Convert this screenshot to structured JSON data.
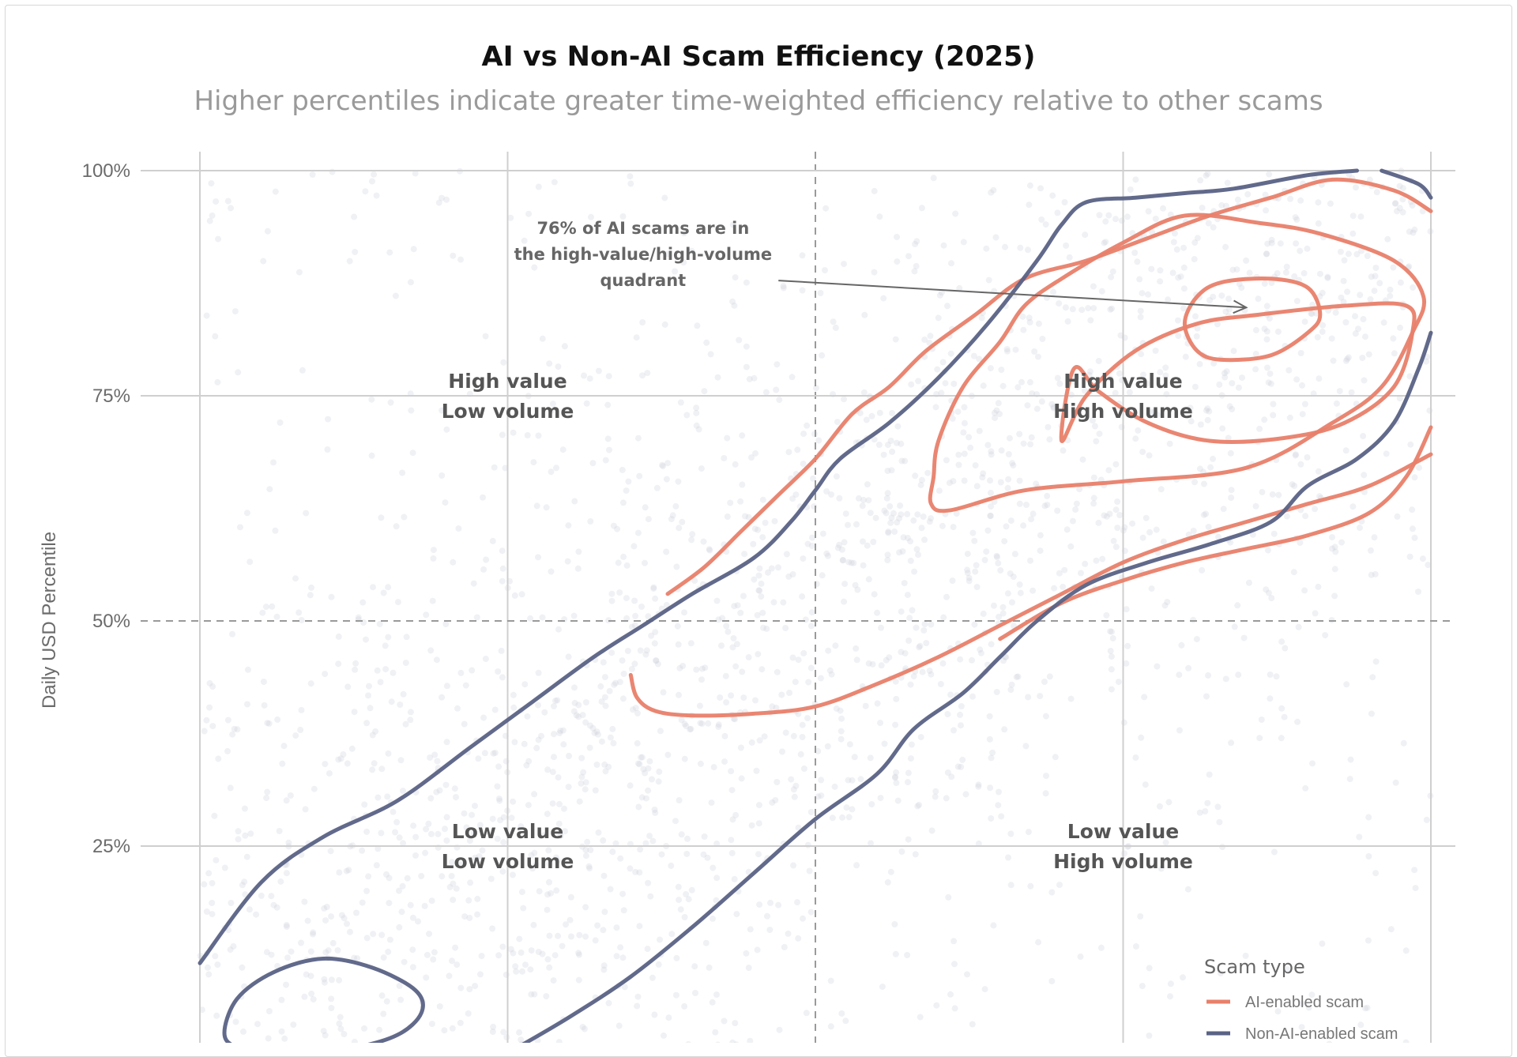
{
  "chart_data": {
    "type": "scatter",
    "title": "AI vs Non-AI Scam Efficiency (2025)",
    "subtitle": "Higher percentiles indicate greater time-weighted efficiency relative to other scams",
    "xlabel": "",
    "ylabel": "Daily USD Percentile",
    "xlim": [
      0,
      100
    ],
    "ylim": [
      0,
      100
    ],
    "yticks": [
      25,
      50,
      75,
      100
    ],
    "ytick_labels": [
      "25%",
      "50%",
      "75%",
      "100%"
    ],
    "xgrid": [
      0,
      25,
      50,
      75,
      100
    ],
    "reference_lines": {
      "x": 50,
      "y": 50
    },
    "grid": true,
    "quadrant_labels": [
      {
        "id": "hvlv",
        "line1": "High value",
        "line2": "Low volume",
        "x": 25,
        "y": 75
      },
      {
        "id": "hvhv",
        "line1": "High value",
        "line2": "High volume",
        "x": 75,
        "y": 75
      },
      {
        "id": "lvlv",
        "line1": "Low value",
        "line2": "Low volume",
        "x": 25,
        "y": 25
      },
      {
        "id": "lvhv",
        "line1": "Low value",
        "line2": "High volume",
        "x": 75,
        "y": 25
      }
    ],
    "annotation": {
      "lines": [
        "76% of AI scams are in",
        "the high-value/high-volume",
        "quadrant"
      ],
      "text_x": 36,
      "text_y": 93,
      "arrow_from": [
        47,
        87.8
      ],
      "arrow_to": [
        85,
        84.8
      ]
    },
    "legend": {
      "title": "Scam type",
      "position": "bottom-right",
      "entries": [
        {
          "label": "AI-enabled scam",
          "color": "#e8806a"
        },
        {
          "label": "Non-AI-enabled scam",
          "color": "#5a6285"
        }
      ]
    },
    "contours": [
      {
        "series": "AI-enabled scam",
        "color": "#e8806a",
        "points": [
          [
            80,
            83
          ],
          [
            81,
            80
          ],
          [
            83,
            79
          ],
          [
            87,
            79.5
          ],
          [
            90,
            82
          ],
          [
            91,
            84
          ],
          [
            90,
            87
          ],
          [
            87,
            88
          ],
          [
            83,
            87.6
          ],
          [
            81,
            86
          ]
        ]
      },
      {
        "series": "AI-enabled scam",
        "color": "#e8806a",
        "points": [
          [
            70,
            70
          ],
          [
            72,
            75
          ],
          [
            76,
            80
          ],
          [
            81,
            83
          ],
          [
            86,
            84
          ],
          [
            93,
            85
          ],
          [
            98,
            85
          ],
          [
            98.5,
            82
          ],
          [
            97,
            76
          ],
          [
            93,
            72
          ],
          [
            88,
            70.3
          ],
          [
            82,
            70
          ],
          [
            77,
            72
          ],
          [
            73,
            75.5
          ],
          [
            71,
            78
          ]
        ]
      },
      {
        "series": "AI-enabled scam",
        "color": "#e8806a",
        "points": [
          [
            60,
            70
          ],
          [
            59.6,
            66
          ],
          [
            59.4,
            63
          ],
          [
            61,
            62.3
          ],
          [
            67,
            64.5
          ],
          [
            75,
            65.5
          ],
          [
            85,
            67
          ],
          [
            92,
            72
          ],
          [
            96,
            76
          ],
          [
            98.5,
            82
          ],
          [
            99.4,
            86
          ],
          [
            97,
            90
          ],
          [
            91,
            93
          ],
          [
            86,
            94.2
          ],
          [
            80,
            95
          ],
          [
            75,
            92
          ],
          [
            70,
            88
          ],
          [
            67,
            85
          ],
          [
            65,
            81
          ],
          [
            62,
            76
          ]
        ]
      },
      {
        "series": "AI-enabled scam",
        "color": "#e8806a",
        "points": [
          [
            35,
            44
          ],
          [
            35.5,
            41.5
          ],
          [
            37,
            40
          ],
          [
            40,
            39.5
          ],
          [
            45,
            39.7
          ],
          [
            50,
            40.5
          ],
          [
            55,
            43
          ],
          [
            60,
            46
          ],
          [
            65,
            49.5
          ],
          [
            70,
            53
          ],
          [
            75,
            56.5
          ],
          [
            80,
            59
          ],
          [
            85,
            61
          ],
          [
            90,
            63
          ],
          [
            95,
            65
          ],
          [
            100,
            68.5
          ]
        ]
      },
      {
        "series": "AI-enabled scam",
        "color": "#e8806a",
        "points": [
          [
            100,
            95.5
          ],
          [
            97,
            97.8
          ],
          [
            92,
            99
          ],
          [
            87,
            97
          ],
          [
            82,
            95
          ],
          [
            77,
            92.5
          ],
          [
            72,
            90
          ],
          [
            67,
            88
          ],
          [
            63,
            84
          ],
          [
            59,
            80
          ],
          [
            56,
            76
          ],
          [
            53,
            73
          ],
          [
            50,
            68
          ],
          [
            47,
            64
          ],
          [
            44,
            60
          ],
          [
            41,
            56
          ],
          [
            38,
            53
          ]
        ]
      },
      {
        "series": "AI-enabled scam",
        "color": "#e8806a",
        "points": [
          [
            100,
            71.5
          ],
          [
            98,
            66
          ],
          [
            95,
            62
          ],
          [
            90,
            59.5
          ],
          [
            85,
            58
          ],
          [
            80,
            56.5
          ],
          [
            75,
            54.5
          ],
          [
            70,
            52
          ],
          [
            65,
            48
          ]
        ]
      },
      {
        "series": "Non-AI-enabled scam",
        "color": "#5a6285",
        "points": [
          [
            2,
            4
          ],
          [
            3,
            8
          ],
          [
            6,
            11
          ],
          [
            10,
            12.5
          ],
          [
            14,
            11.5
          ],
          [
            17.5,
            9
          ],
          [
            18,
            6.5
          ],
          [
            16,
            4
          ],
          [
            12,
            2.5
          ],
          [
            7,
            2
          ],
          [
            3.5,
            2.5
          ]
        ]
      },
      {
        "series": "Non-AI-enabled scam",
        "color": "#5a6285",
        "points": [
          [
            0,
            12
          ],
          [
            5,
            21
          ],
          [
            10,
            26
          ],
          [
            16,
            30
          ],
          [
            22,
            36
          ],
          [
            27,
            41
          ],
          [
            32,
            46
          ],
          [
            36,
            49.5
          ],
          [
            40,
            53
          ],
          [
            45,
            57
          ],
          [
            48,
            61
          ],
          [
            50,
            64.5
          ],
          [
            52,
            68
          ],
          [
            56,
            72
          ],
          [
            60,
            77
          ],
          [
            64,
            83
          ],
          [
            68,
            90
          ],
          [
            70,
            94
          ],
          [
            72,
            96.5
          ],
          [
            76,
            97
          ],
          [
            80,
            97.5
          ],
          [
            84,
            98
          ],
          [
            90,
            99.5
          ],
          [
            94,
            100
          ]
        ]
      },
      {
        "series": "Non-AI-enabled scam",
        "color": "#5a6285",
        "points": [
          [
            20,
            -2
          ],
          [
            25,
            2
          ],
          [
            30,
            6
          ],
          [
            35,
            10.5
          ],
          [
            40,
            16
          ],
          [
            45,
            22
          ],
          [
            50,
            28
          ],
          [
            55,
            33
          ],
          [
            58,
            38
          ],
          [
            62,
            42
          ],
          [
            65,
            46
          ],
          [
            68,
            50
          ],
          [
            72,
            54
          ],
          [
            77,
            56.5
          ],
          [
            82,
            58.5
          ],
          [
            87,
            61
          ],
          [
            90,
            65
          ],
          [
            94,
            68
          ],
          [
            97,
            72
          ],
          [
            99,
            78
          ],
          [
            100,
            82
          ]
        ]
      },
      {
        "series": "Non-AI-enabled scam",
        "color": "#5a6285",
        "points": [
          [
            96,
            100
          ],
          [
            99,
            98.5
          ],
          [
            100,
            97
          ]
        ]
      }
    ],
    "density_center": [
      78,
      78
    ]
  }
}
